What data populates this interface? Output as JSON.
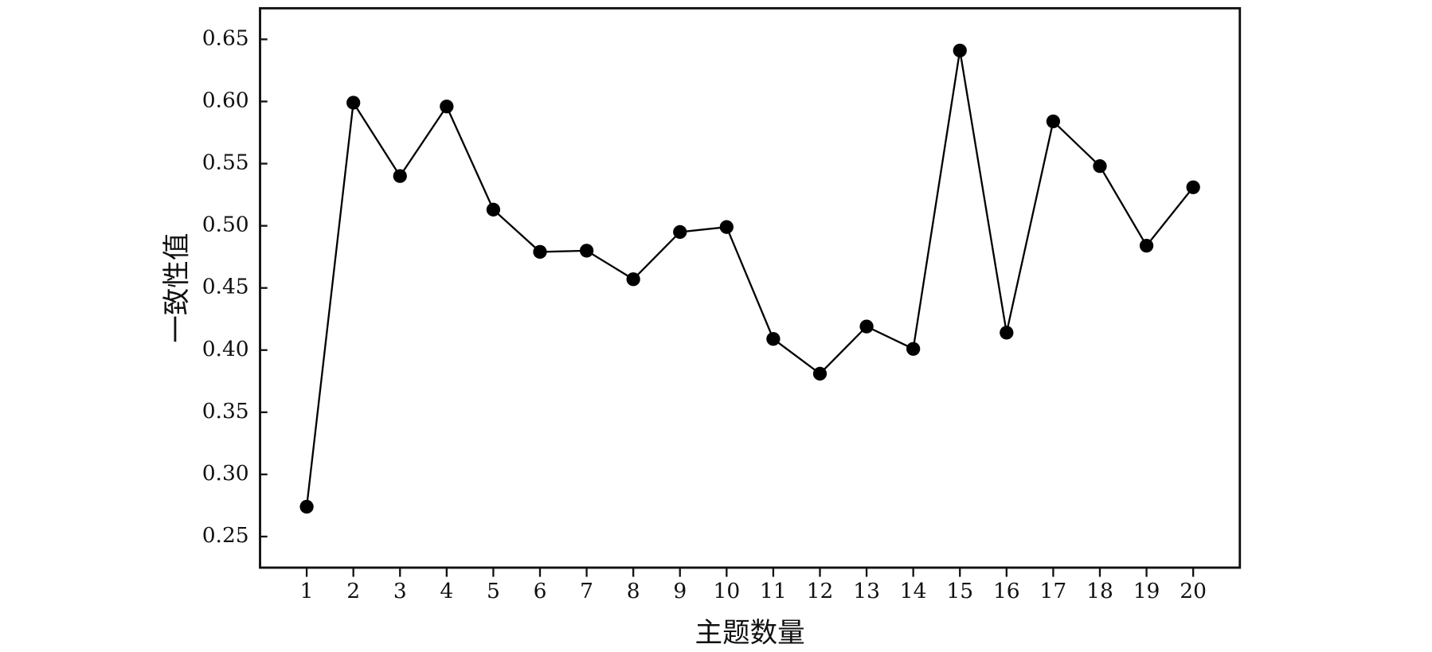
{
  "chart_data": {
    "type": "line",
    "x_label": "主题数量",
    "y_label": "一致性值",
    "x": [
      1,
      2,
      3,
      4,
      5,
      6,
      7,
      8,
      9,
      10,
      11,
      12,
      13,
      14,
      15,
      16,
      17,
      18,
      19,
      20
    ],
    "series": [
      {
        "name": "一致性值",
        "color": "#000000",
        "values": [
          0.274,
          0.599,
          0.54,
          0.596,
          0.513,
          0.479,
          0.48,
          0.457,
          0.495,
          0.499,
          0.409,
          0.381,
          0.419,
          0.401,
          0.641,
          0.414,
          0.584,
          0.548,
          0.484,
          0.531
        ]
      }
    ],
    "xlim": [
      0,
      21
    ],
    "xticks": [
      1,
      2,
      3,
      4,
      5,
      6,
      7,
      8,
      9,
      10,
      11,
      12,
      13,
      14,
      15,
      16,
      17,
      18,
      19,
      20
    ],
    "ylim": [
      0.225,
      0.675
    ],
    "yticks": [
      0.25,
      {
        "value": 0.3,
        "label": "0.30"
      },
      0.35,
      {
        "value": 0.4,
        "label": "0.40"
      },
      0.45,
      {
        "value": 0.5,
        "label": "0.50"
      },
      0.55,
      {
        "value": 0.6,
        "label": "0.60"
      },
      0.65
    ],
    "grid": false
  }
}
